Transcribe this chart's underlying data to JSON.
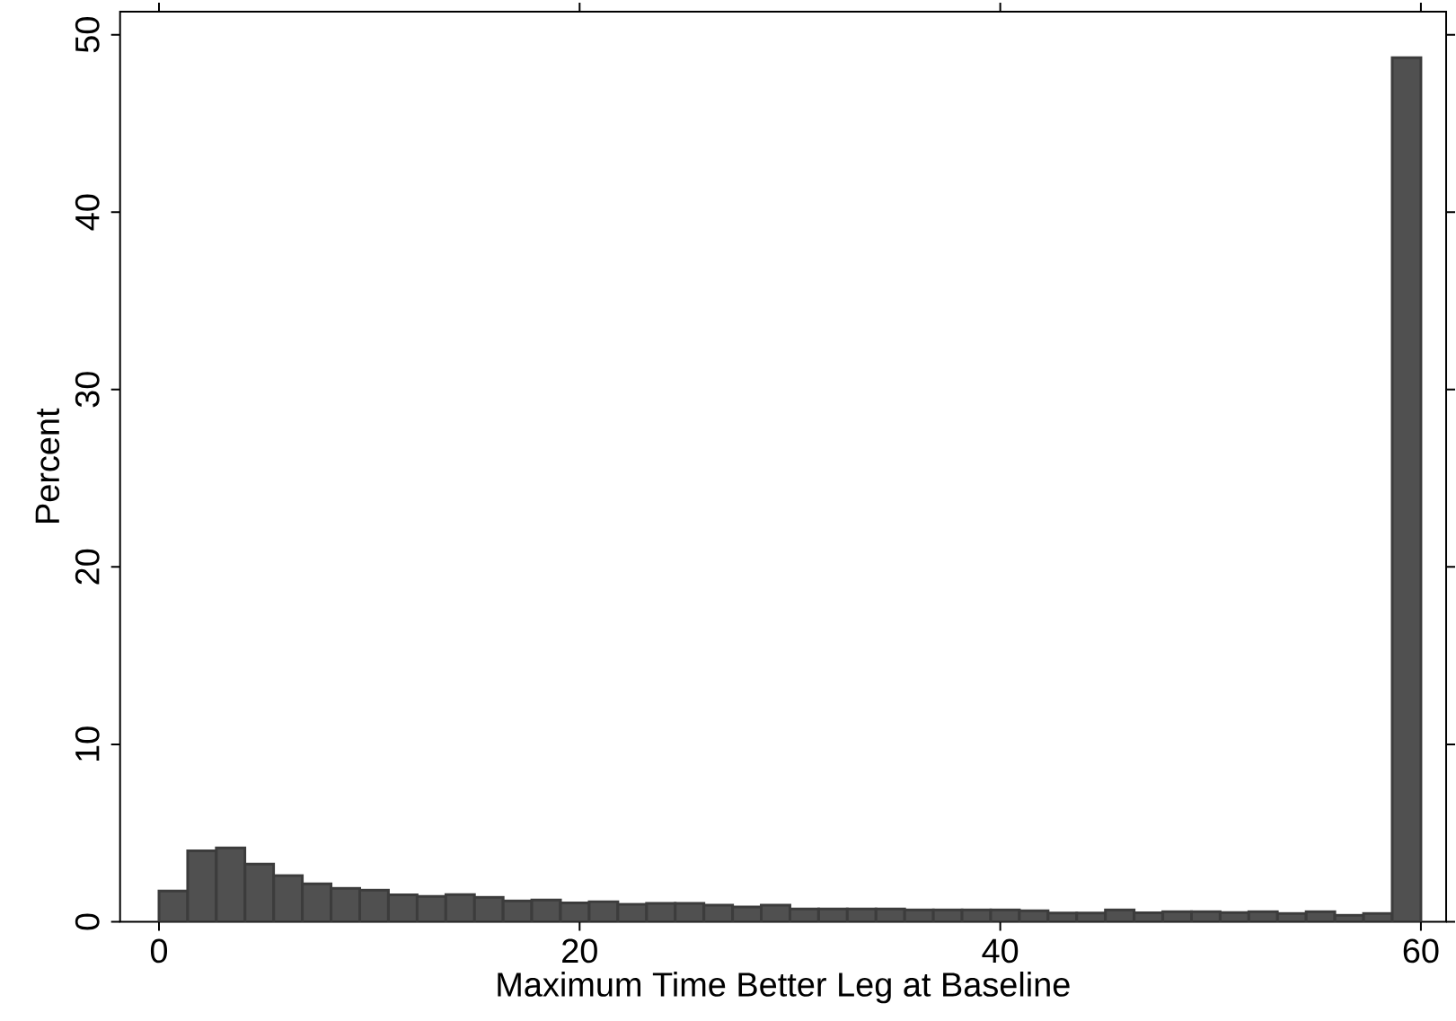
{
  "chart_data": {
    "type": "histogram",
    "xlabel": "Maximum Time Better Leg at Baseline",
    "ylabel": "Percent",
    "bins": [
      0,
      1.364,
      2.727,
      4.091,
      5.455,
      6.818,
      8.182,
      9.545,
      10.909,
      12.273,
      13.636,
      15,
      16.364,
      17.727,
      19.091,
      20.455,
      21.818,
      23.182,
      24.545,
      25.909,
      27.273,
      28.636,
      30,
      31.364,
      32.727,
      34.091,
      35.455,
      36.818,
      38.182,
      39.545,
      40.909,
      42.273,
      43.636,
      45,
      46.364,
      47.727,
      49.091,
      50.455,
      51.818,
      53.182,
      54.545,
      55.909,
      57.273,
      58.636,
      60
    ],
    "values": [
      1.73,
      4.0,
      4.16,
      3.25,
      2.6,
      2.14,
      1.88,
      1.78,
      1.52,
      1.43,
      1.53,
      1.38,
      1.18,
      1.23,
      1.06,
      1.13,
      0.98,
      1.03,
      1.03,
      0.93,
      0.83,
      0.93,
      0.72,
      0.72,
      0.72,
      0.72,
      0.67,
      0.67,
      0.67,
      0.67,
      0.62,
      0.49,
      0.49,
      0.67,
      0.5,
      0.57,
      0.57,
      0.52,
      0.57,
      0.47,
      0.57,
      0.37,
      0.47,
      48.7
    ],
    "color": "#505050",
    "xlim": [
      -1.85,
      61.2
    ],
    "ylim": [
      0,
      51.3
    ],
    "xticks": [
      0,
      20,
      40,
      60
    ],
    "yticks": [
      0,
      10,
      20,
      30,
      40,
      50
    ],
    "grid": false
  }
}
